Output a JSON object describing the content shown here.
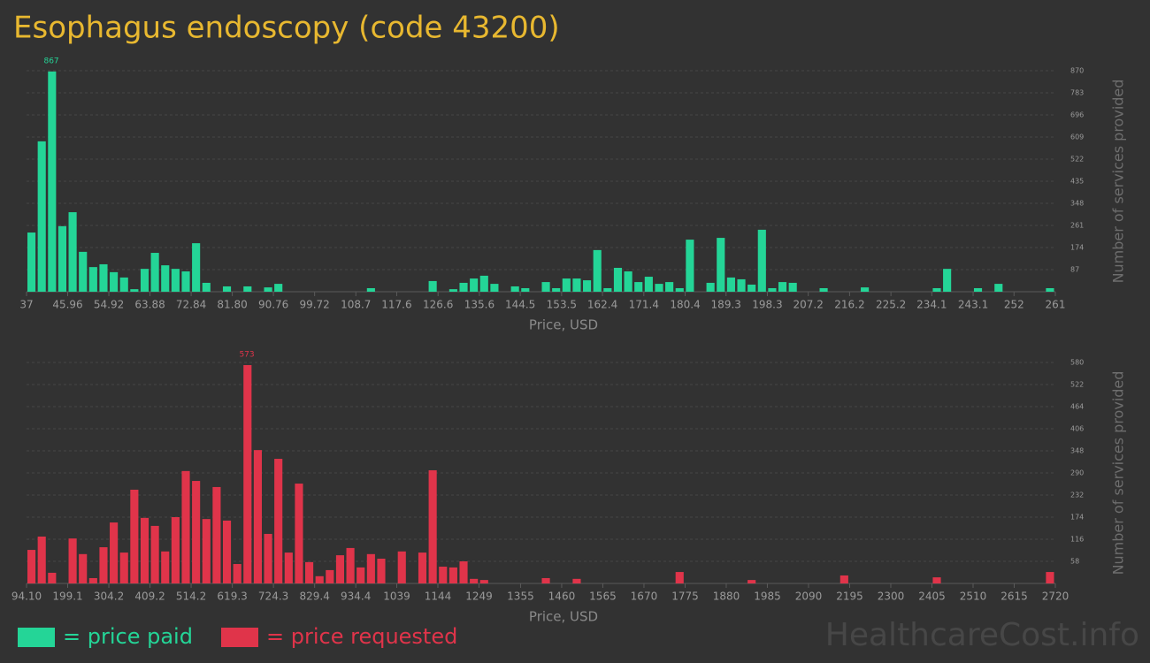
{
  "title": "Esophagus endoscopy (code 43200)",
  "watermark": "HealthcareCost.info",
  "chart_data": [
    {
      "type": "histogram",
      "xlabel": "Price, USD",
      "ylabel": "Number of services provided",
      "xlim": [
        37,
        261
      ],
      "ylim": [
        0,
        870
      ],
      "yticks": [
        87,
        174,
        261,
        348,
        435,
        522,
        609,
        696,
        783,
        870
      ],
      "xticks": [
        37,
        45.96,
        54.92,
        63.88,
        72.84,
        {
          "value": 81.8,
          "label": "81.80"
        },
        90.76,
        99.72,
        108.7,
        117.6,
        126.6,
        135.6,
        144.5,
        153.5,
        162.4,
        171.4,
        180.4,
        189.3,
        198.3,
        207.2,
        216.2,
        225.2,
        234.1,
        243.1,
        252,
        261
      ],
      "grid": true,
      "bins": [
        37,
        39.24,
        41.48,
        43.72,
        45.96,
        48.2,
        50.44,
        52.68,
        54.92,
        57.16,
        59.4,
        61.64,
        63.88,
        66.12,
        68.36,
        70.6,
        72.84,
        75.08,
        77.32,
        79.56,
        81.8,
        84.04,
        86.28,
        88.52,
        90.76,
        93,
        95.24,
        97.48,
        99.72,
        101.96,
        104.2,
        106.44,
        108.68,
        110.92,
        113.16,
        115.4,
        117.64,
        119.88,
        122.12,
        124.36,
        126.6,
        128.84,
        131.08,
        133.32,
        135.56,
        137.8,
        140.04,
        142.28,
        144.52,
        146.76,
        149,
        151.24,
        153.48,
        155.72,
        157.96,
        160.2,
        162.44,
        164.68,
        166.92,
        169.16,
        171.4,
        173.64,
        175.88,
        178.12,
        180.36,
        182.6,
        184.84,
        187.08,
        189.32,
        191.56,
        193.8,
        196.04,
        198.28,
        200.52,
        202.76,
        205,
        207.24,
        209.48,
        211.72,
        213.96,
        216.2,
        218.44,
        220.68,
        222.92,
        225.16,
        227.4,
        229.64,
        231.88,
        234.12,
        236.36,
        238.6,
        240.84,
        243.08,
        245.32,
        247.56,
        249.8,
        252.04,
        254.28,
        256.52,
        258.76,
        261
      ],
      "series": [
        {
          "name": "= price paid",
          "color": "#24d597",
          "values": [
            233,
            592,
            867,
            258,
            313,
            157,
            97,
            108,
            77,
            56,
            10,
            90,
            153,
            104,
            90,
            80,
            191,
            35,
            0,
            21,
            0,
            21,
            0,
            17,
            31,
            0,
            0,
            0,
            0,
            0,
            0,
            0,
            0,
            14,
            0,
            0,
            0,
            0,
            0,
            42,
            0,
            10,
            35,
            52,
            63,
            31,
            0,
            21,
            14,
            0,
            38,
            14,
            52,
            52,
            45,
            164,
            14,
            94,
            80,
            38,
            59,
            31,
            38,
            14,
            205,
            0,
            35,
            212,
            56,
            49,
            28,
            244,
            14,
            38,
            35,
            0,
            0,
            14,
            0,
            0,
            0,
            17,
            0,
            0,
            0,
            0,
            0,
            0,
            14,
            90,
            0,
            0,
            14,
            0,
            31,
            0,
            0,
            0,
            0,
            14
          ]
        }
      ]
    },
    {
      "type": "histogram",
      "xlabel": "Price, USD",
      "ylabel": "Number of services provided",
      "xlim": [
        94.1,
        2720
      ],
      "ylim": [
        0,
        580
      ],
      "yticks": [
        58,
        116,
        174,
        232,
        290,
        348,
        406,
        464,
        522,
        580
      ],
      "xticks": [
        {
          "value": 94.1,
          "label": "94.10"
        },
        199.1,
        304.2,
        409.2,
        514.2,
        619.3,
        724.3,
        829.4,
        934.4,
        1039,
        1144,
        1249,
        1355,
        1460,
        1565,
        1670,
        1775,
        1880,
        1985,
        2090,
        2195,
        2300,
        2405,
        2510,
        2615,
        2720
      ],
      "grid": true,
      "bins": [
        94.1,
        120.36,
        146.62,
        172.88,
        199.14,
        225.4,
        251.65,
        277.91,
        304.17,
        330.43,
        356.69,
        382.95,
        409.21,
        435.47,
        461.73,
        487.99,
        514.24,
        540.5,
        566.76,
        593.02,
        619.28,
        645.54,
        671.8,
        698.06,
        724.32,
        750.58,
        776.83,
        803.09,
        829.35,
        855.61,
        881.87,
        908.13,
        934.39,
        960.65,
        986.91,
        1013.17,
        1039.42,
        1065.68,
        1091.94,
        1118.2,
        1144.46,
        1170.72,
        1196.98,
        1223.24,
        1249.5,
        1275.76,
        1302.01,
        1328.27,
        1354.53,
        1380.79,
        1407.05,
        1433.31,
        1459.57,
        1485.83,
        1512.09,
        1538.35,
        1564.6,
        1590.86,
        1617.12,
        1643.38,
        1669.64,
        1695.9,
        1722.16,
        1748.42,
        1774.68,
        1800.94,
        1827.19,
        1853.45,
        1879.71,
        1905.97,
        1932.23,
        1958.49,
        1984.75,
        2011.01,
        2037.27,
        2063.53,
        2089.78,
        2116.04,
        2142.3,
        2168.56,
        2194.82,
        2221.08,
        2247.34,
        2273.6,
        2299.86,
        2326.12,
        2352.37,
        2378.63,
        2404.89,
        2431.15,
        2457.41,
        2483.67,
        2509.93,
        2536.19,
        2562.45,
        2588.71,
        2614.96,
        2641.22,
        2667.48,
        2693.74,
        2720
      ],
      "series": [
        {
          "name": "= price requested",
          "color": "#e0344a",
          "values": [
            88,
            123,
            28,
            0,
            118,
            77,
            14,
            95,
            160,
            81,
            246,
            172,
            151,
            84,
            174,
            295,
            269,
            169,
            253,
            165,
            51,
            573,
            350,
            130,
            327,
            81,
            262,
            56,
            19,
            35,
            74,
            93,
            42,
            77,
            65,
            0,
            84,
            0,
            81,
            297,
            44,
            42,
            58,
            12,
            9,
            0,
            0,
            0,
            0,
            0,
            14,
            0,
            0,
            12,
            0,
            0,
            0,
            0,
            0,
            0,
            0,
            0,
            0,
            30,
            0,
            0,
            0,
            0,
            0,
            0,
            9,
            0,
            0,
            0,
            0,
            0,
            0,
            0,
            0,
            21,
            0,
            0,
            0,
            0,
            0,
            0,
            0,
            0,
            16,
            0,
            0,
            0,
            0,
            0,
            0,
            0,
            0,
            0,
            0,
            30
          ]
        }
      ]
    }
  ]
}
